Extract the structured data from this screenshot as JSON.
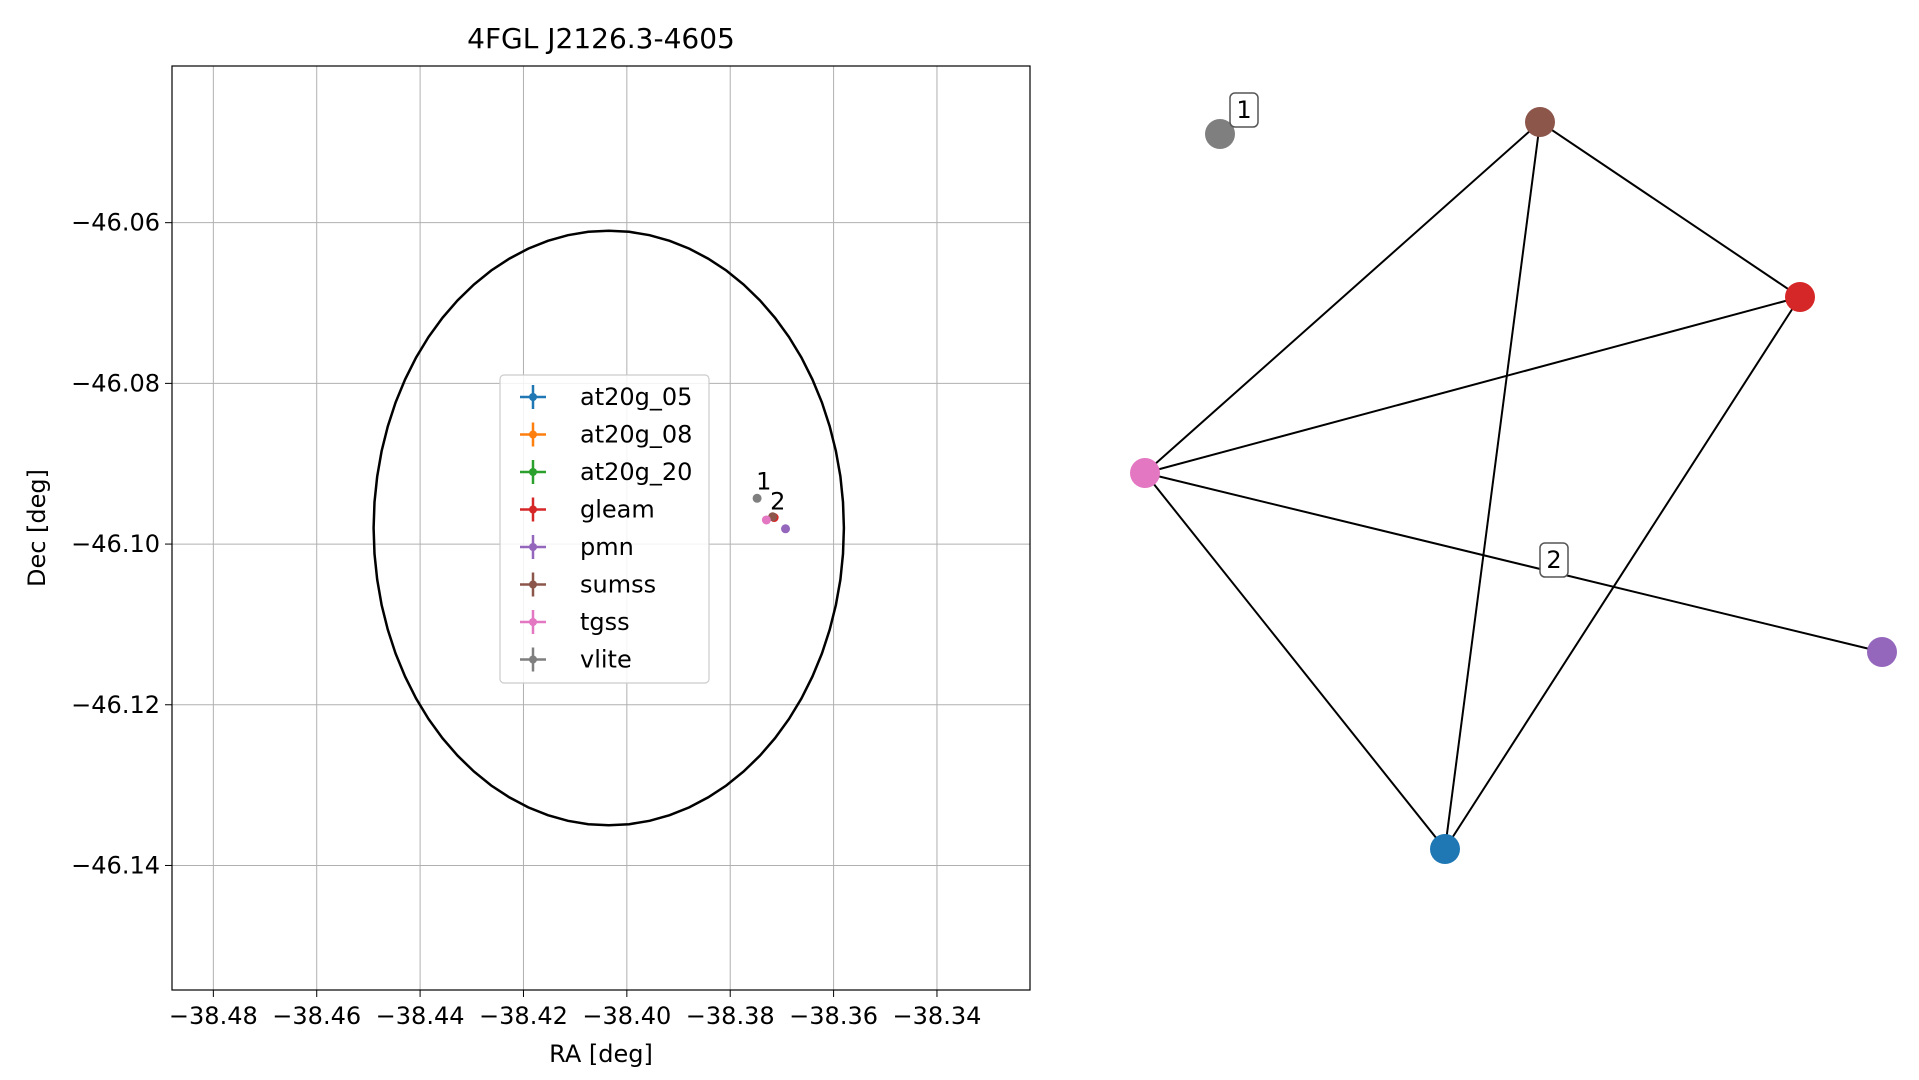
{
  "chart_data": [
    {
      "type": "scatter",
      "title": "4FGL J2126.3-4605",
      "xlabel": "RA [deg]",
      "ylabel": "Dec [deg]",
      "xlim": [
        -38.488,
        -38.322
      ],
      "ylim": [
        -46.1555,
        -46.0405
      ],
      "xticks": [
        -38.48,
        -38.46,
        -38.44,
        -38.42,
        -38.4,
        -38.38,
        -38.36,
        -38.34
      ],
      "xtick_labels": [
        "−38.48",
        "−38.46",
        "−38.44",
        "−38.42",
        "−38.40",
        "−38.38",
        "−38.36",
        "−38.34"
      ],
      "yticks": [
        -46.06,
        -46.08,
        -46.1,
        -46.12,
        -46.14
      ],
      "ytick_labels": [
        "−46.06",
        "−46.08",
        "−46.10",
        "−46.12",
        "−46.14"
      ],
      "grid": true,
      "legend_position": "center-left",
      "ellipse": {
        "center_ra": -38.4035,
        "center_dec": -46.098,
        "half_width_ra": 0.0455,
        "half_height_dec": 0.037,
        "color": "#000000"
      },
      "series": [
        {
          "name": "at20g_05",
          "color": "#1f77b4",
          "points": []
        },
        {
          "name": "at20g_08",
          "color": "#ff7f0e",
          "points": []
        },
        {
          "name": "at20g_20",
          "color": "#2ca02c",
          "points": []
        },
        {
          "name": "gleam",
          "color": "#d62728",
          "points": [
            {
              "ra": -38.3715,
              "dec": -46.0967
            }
          ]
        },
        {
          "name": "pmn",
          "color": "#9467bd",
          "points": [
            {
              "ra": -38.3693,
              "dec": -46.0981
            }
          ]
        },
        {
          "name": "sumss",
          "color": "#8c564b",
          "points": [
            {
              "ra": -38.3718,
              "dec": -46.0966
            }
          ]
        },
        {
          "name": "tgss",
          "color": "#e377c2",
          "points": [
            {
              "ra": -38.373,
              "dec": -46.097
            }
          ]
        },
        {
          "name": "vlite",
          "color": "#7f7f7f",
          "points": [
            {
              "ra": -38.3748,
              "dec": -46.0943
            }
          ]
        }
      ],
      "annotations": [
        {
          "text": "1",
          "ra": -38.3735,
          "dec": -46.0922
        },
        {
          "text": "2",
          "ra": -38.3708,
          "dec": -46.0947
        }
      ]
    },
    {
      "type": "network",
      "nodes": [
        {
          "id": "vlite",
          "color": "#7f7f7f"
        },
        {
          "id": "sumss",
          "color": "#8c564b"
        },
        {
          "id": "gleam",
          "color": "#d62728"
        },
        {
          "id": "tgss",
          "color": "#e377c2"
        },
        {
          "id": "pmn",
          "color": "#9467bd"
        },
        {
          "id": "at20g",
          "color": "#1f77b4"
        }
      ],
      "edges": [
        [
          "tgss",
          "sumss"
        ],
        [
          "tgss",
          "gleam"
        ],
        [
          "tgss",
          "pmn"
        ],
        [
          "tgss",
          "at20g"
        ],
        [
          "sumss",
          "gleam"
        ],
        [
          "sumss",
          "at20g"
        ],
        [
          "gleam",
          "at20g"
        ]
      ],
      "labels": [
        {
          "text": "1",
          "near": "vlite"
        },
        {
          "text": "2",
          "near": "tgss-pmn edge"
        }
      ]
    }
  ]
}
